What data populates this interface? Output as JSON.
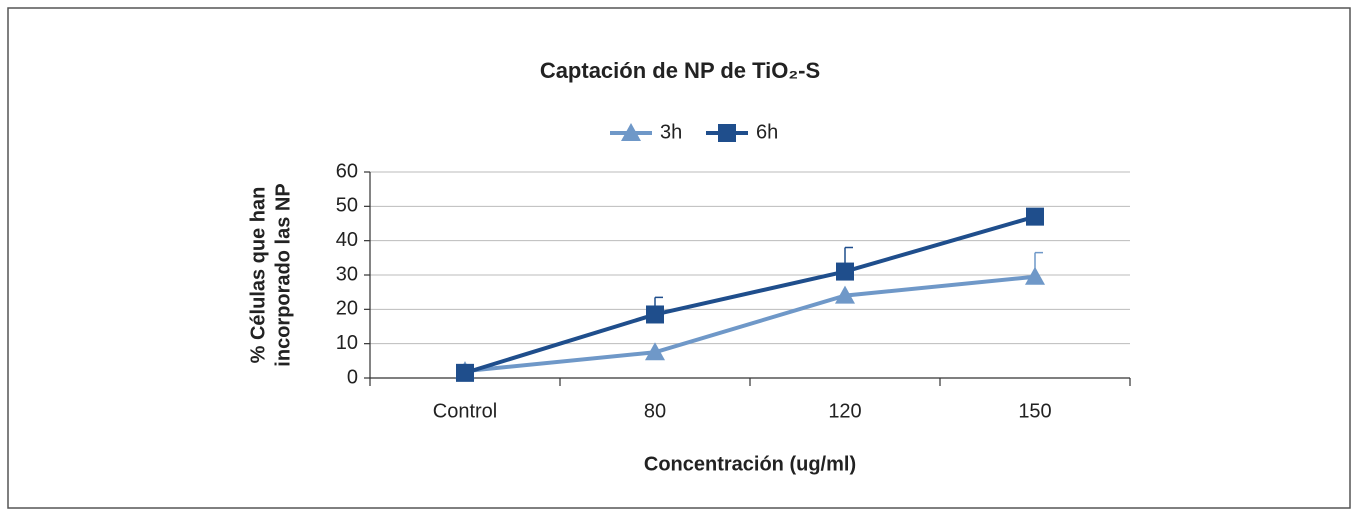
{
  "chart_data": {
    "type": "line",
    "title": "Captación de NP de TiO₂-S",
    "xlabel": "Concentración (ug/ml)",
    "ylabel": [
      "% Células que han",
      "incorporado las NP"
    ],
    "categories": [
      "Control",
      "80",
      "120",
      "150"
    ],
    "series": [
      {
        "name": "3h",
        "color": "#6f98c8",
        "marker": "triangle",
        "values": [
          2,
          7.5,
          24,
          29.5
        ],
        "errors": [
          null,
          null,
          null,
          7
        ]
      },
      {
        "name": "6h",
        "color": "#1f4e8c",
        "marker": "square",
        "values": [
          1.5,
          18.5,
          31,
          47
        ],
        "errors": [
          null,
          5,
          7,
          1.5
        ]
      }
    ],
    "ylim": [
      0,
      60
    ],
    "yticks": [
      0,
      10,
      20,
      30,
      40,
      50,
      60
    ],
    "grid": true,
    "legend": "top"
  }
}
